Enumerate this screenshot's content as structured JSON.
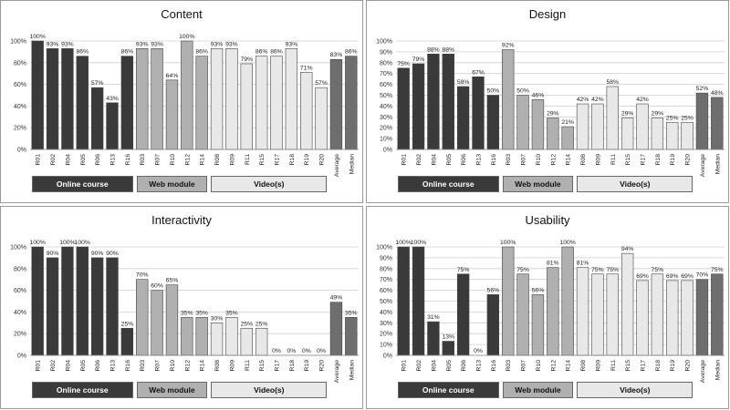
{
  "legend": {
    "online": "Online course",
    "web": "Web module",
    "video": "Video(s)"
  },
  "group_colors": {
    "online": "#3a3a3a",
    "web": "#b0b0b0",
    "video": "#e8e8e8",
    "summary": "#6e6e6e"
  },
  "chart_data": [
    {
      "type": "bar",
      "title": "Content",
      "ylim": [
        0,
        100
      ],
      "yticks": [
        "0%",
        "20%",
        "40%",
        "60%",
        "80%",
        "100%"
      ],
      "grid": true,
      "categories": [
        "R01",
        "R02",
        "R04",
        "R05",
        "R06",
        "R13",
        "R16",
        "R03",
        "R07",
        "R10",
        "R12",
        "R14",
        "R08",
        "R09",
        "R11",
        "R15",
        "R17",
        "R18",
        "R19",
        "R20",
        "Average",
        "Median"
      ],
      "groups": [
        "online",
        "online",
        "online",
        "online",
        "online",
        "online",
        "online",
        "web",
        "web",
        "web",
        "web",
        "web",
        "video",
        "video",
        "video",
        "video",
        "video",
        "video",
        "video",
        "video",
        "summary",
        "summary"
      ],
      "values": [
        100,
        93,
        93,
        86,
        57,
        43,
        86,
        93,
        93,
        64,
        100,
        86,
        93,
        93,
        79,
        86,
        86,
        93,
        71,
        57,
        83,
        86
      ],
      "labels": [
        "100%",
        "93%",
        "93%",
        "86%",
        "57%",
        "43%",
        "86%",
        "93%",
        "93%",
        "64%",
        "100%",
        "86%",
        "93%",
        "93%",
        "79%",
        "86%",
        "86%",
        "93%",
        "71%",
        "57%",
        "83%",
        "86%"
      ]
    },
    {
      "type": "bar",
      "title": "Design",
      "ylim": [
        0,
        100
      ],
      "yticks": [
        "0%",
        "10%",
        "20%",
        "30%",
        "40%",
        "50%",
        "60%",
        "70%",
        "80%",
        "90%",
        "100%"
      ],
      "grid": true,
      "categories": [
        "R01",
        "R02",
        "R04",
        "R05",
        "R06",
        "R13",
        "R16",
        "R03",
        "R07",
        "R10",
        "R12",
        "R14",
        "R08",
        "R09",
        "R11",
        "R15",
        "R17",
        "R18",
        "R19",
        "R20",
        "Average",
        "Median"
      ],
      "groups": [
        "online",
        "online",
        "online",
        "online",
        "online",
        "online",
        "online",
        "web",
        "web",
        "web",
        "web",
        "web",
        "video",
        "video",
        "video",
        "video",
        "video",
        "video",
        "video",
        "video",
        "summary",
        "summary"
      ],
      "values": [
        75,
        79,
        88,
        88,
        58,
        67,
        50,
        92,
        50,
        46,
        29,
        21,
        42,
        42,
        58,
        29,
        42,
        29,
        25,
        25,
        52,
        48
      ],
      "labels": [
        "75%",
        "79%",
        "88%",
        "88%",
        "58%",
        "67%",
        "50%",
        "92%",
        "50%",
        "46%",
        "29%",
        "21%",
        "42%",
        "42%",
        "58%",
        "29%",
        "42%",
        "29%",
        "25%",
        "25%",
        "52%",
        "48%"
      ]
    },
    {
      "type": "bar",
      "title": "Interactivity",
      "ylim": [
        0,
        100
      ],
      "yticks": [
        "0%",
        "20%",
        "40%",
        "60%",
        "80%",
        "100%"
      ],
      "grid": true,
      "categories": [
        "R01",
        "R02",
        "R04",
        "R05",
        "R06",
        "R13",
        "R16",
        "R03",
        "R07",
        "R10",
        "R12",
        "R14",
        "R08",
        "R09",
        "R11",
        "R15",
        "R17",
        "R18",
        "R19",
        "R20",
        "Average",
        "Median"
      ],
      "groups": [
        "online",
        "online",
        "online",
        "online",
        "online",
        "online",
        "online",
        "web",
        "web",
        "web",
        "web",
        "web",
        "video",
        "video",
        "video",
        "video",
        "video",
        "video",
        "video",
        "video",
        "summary",
        "summary"
      ],
      "values": [
        100,
        90,
        100,
        100,
        90,
        90,
        25,
        70,
        60,
        65,
        35,
        35,
        30,
        35,
        25,
        25,
        0,
        0,
        0,
        0,
        49,
        35
      ],
      "labels": [
        "100%",
        "90%",
        "100%",
        "100%",
        "90%",
        "90%",
        "25%",
        "70%",
        "60%",
        "65%",
        "35%",
        "35%",
        "30%",
        "35%",
        "25%",
        "25%",
        "0%",
        "0%",
        "0%",
        "0%",
        "49%",
        "35%"
      ]
    },
    {
      "type": "bar",
      "title": "Usability",
      "ylim": [
        0,
        100
      ],
      "yticks": [
        "0%",
        "10%",
        "20%",
        "30%",
        "40%",
        "50%",
        "60%",
        "70%",
        "80%",
        "90%",
        "100%"
      ],
      "grid": true,
      "categories": [
        "R01",
        "R02",
        "R04",
        "R05",
        "R06",
        "R13",
        "R16",
        "R03",
        "R07",
        "R10",
        "R12",
        "R14",
        "R08",
        "R09",
        "R11",
        "R15",
        "R17",
        "R18",
        "R19",
        "R20",
        "Average",
        "Median"
      ],
      "groups": [
        "online",
        "online",
        "online",
        "online",
        "online",
        "online",
        "online",
        "web",
        "web",
        "web",
        "web",
        "web",
        "video",
        "video",
        "video",
        "video",
        "video",
        "video",
        "video",
        "video",
        "summary",
        "summary"
      ],
      "values": [
        100,
        100,
        31,
        13,
        75,
        0,
        56,
        100,
        75,
        56,
        81,
        100,
        81,
        75,
        75,
        94,
        69,
        75,
        69,
        69,
        70,
        75
      ],
      "labels": [
        "100%",
        "100%",
        "31%",
        "13%",
        "75%",
        "0%",
        "56%",
        "100%",
        "75%",
        "56%",
        "81%",
        "100%",
        "81%",
        "75%",
        "75%",
        "94%",
        "69%",
        "75%",
        "69%",
        "69%",
        "70%",
        "75%"
      ]
    }
  ]
}
